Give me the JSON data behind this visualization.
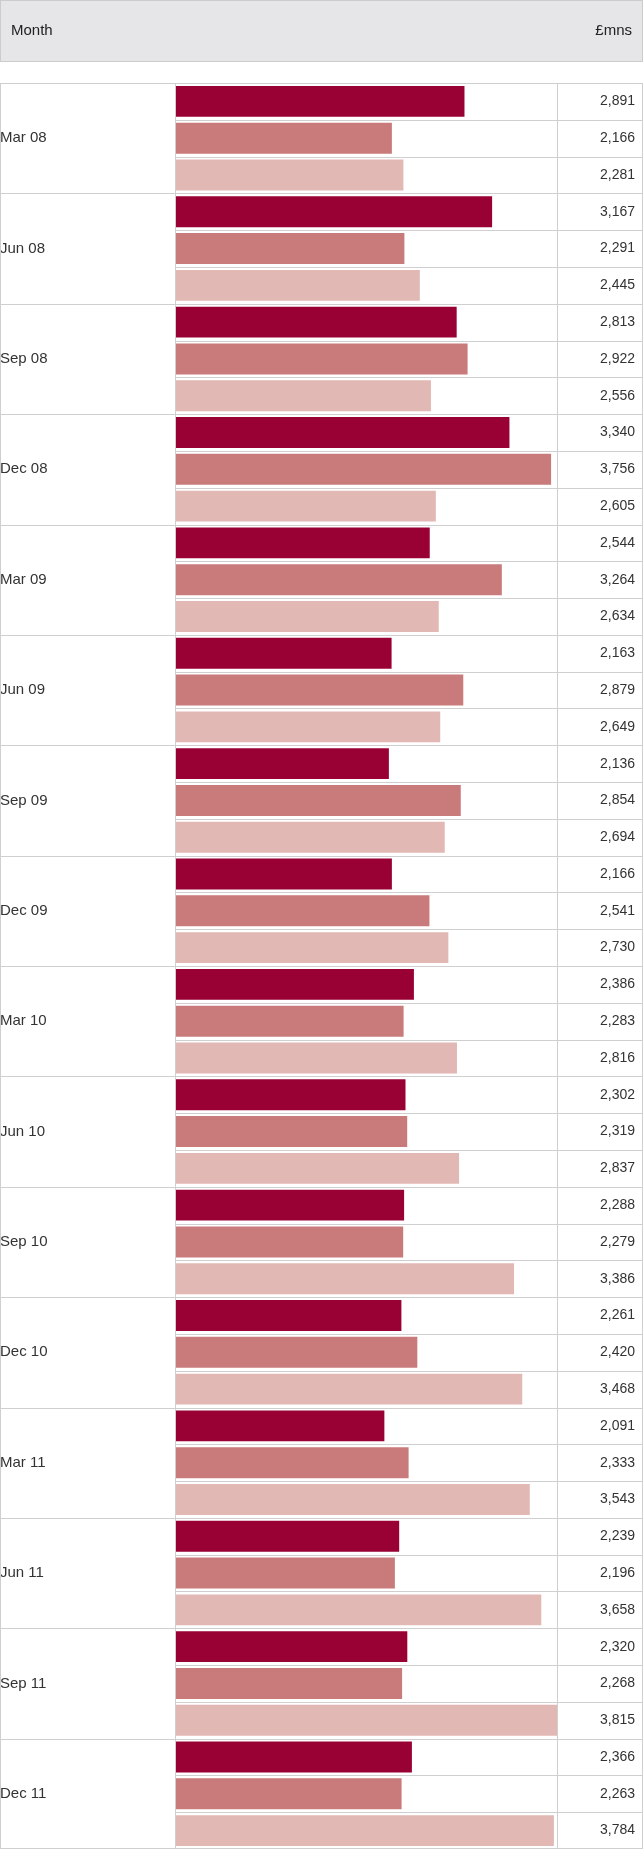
{
  "chart_data": {
    "type": "bar",
    "orientation": "horizontal",
    "xlabel": "£mns",
    "ylabel": "Month",
    "categories": [
      "Mar 08",
      "Jun 08",
      "Sep 08",
      "Dec 08",
      "Mar 09",
      "Jun 09",
      "Sep 09",
      "Dec 09",
      "Mar 10",
      "Jun 10",
      "Sep 10",
      "Dec 10",
      "Mar 11",
      "Jun 11",
      "Sep 11",
      "Dec 11"
    ],
    "series": [
      {
        "color": "#990033",
        "values": [
          2891,
          3167,
          2813,
          3340,
          2544,
          2163,
          2136,
          2166,
          2386,
          2302,
          2288,
          2261,
          2091,
          2239,
          2320,
          2366
        ],
        "value_labels": [
          "2,891",
          "3,167",
          "2,813",
          "3,340",
          "2,544",
          "2,163",
          "2,136",
          "2,166",
          "2,386",
          "2,302",
          "2,288",
          "2,261",
          "2,091",
          "2,239",
          "2,320",
          "2,366"
        ]
      },
      {
        "color": "#c97b7b",
        "values": [
          2166,
          2291,
          2922,
          3756,
          3264,
          2879,
          2854,
          2541,
          2283,
          2319,
          2279,
          2420,
          2333,
          2196,
          2268,
          2263
        ],
        "value_labels": [
          "2,166",
          "2,291",
          "2,922",
          "3,756",
          "3,264",
          "2,879",
          "2,854",
          "2,541",
          "2,283",
          "2,319",
          "2,279",
          "2,420",
          "2,333",
          "2,196",
          "2,268",
          "2,263"
        ]
      },
      {
        "color": "#e2b8b5",
        "values": [
          2281,
          2445,
          2556,
          2605,
          2634,
          2649,
          2694,
          2730,
          2816,
          2837,
          3386,
          3468,
          3543,
          3658,
          3815,
          3784
        ],
        "value_labels": [
          "2,281",
          "2,445",
          "2,556",
          "2,605",
          "2,634",
          "2,649",
          "2,694",
          "2,730",
          "2,816",
          "2,837",
          "3,386",
          "3,468",
          "3,543",
          "3,658",
          "3,815",
          "3,784"
        ]
      }
    ],
    "xlim": [
      0,
      3815
    ],
    "tick_labels": "y",
    "grid": false,
    "legend": false
  }
}
